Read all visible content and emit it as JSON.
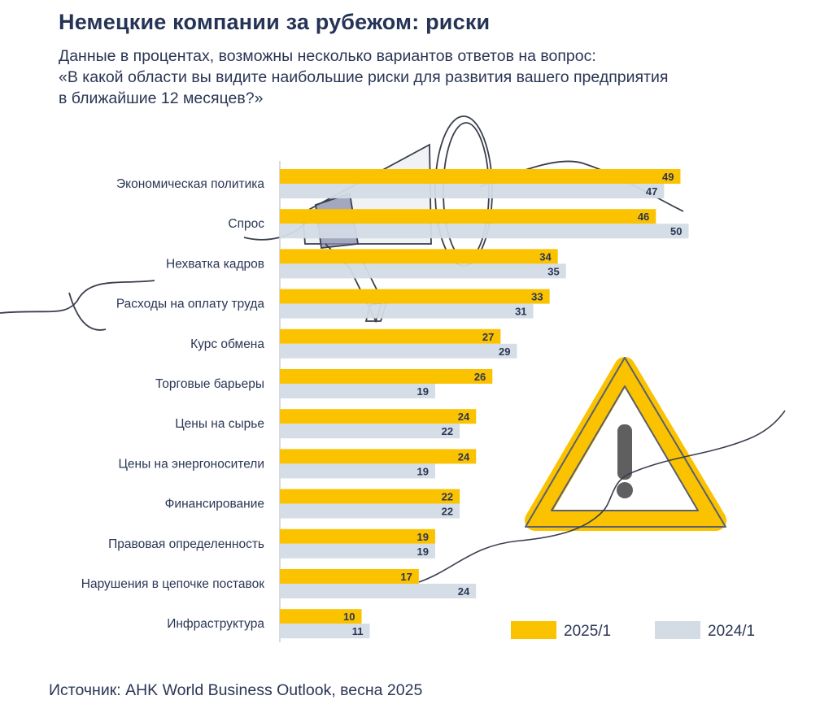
{
  "title": "Немецкие компании за рубежом: риски",
  "subtitle_lines": [
    "Данные в процентах, возможны несколько вариантов ответов на вопрос:",
    "«В какой области вы видите наибольшие риски для развития вашего предприятия",
    "в ближайшие 12 месяцев?»"
  ],
  "source": "Источник: AHK World Business Outlook, весна 2025",
  "colors": {
    "series_2025": "#fbc200",
    "series_2024": "#d3dbe5",
    "text": "#2a3654"
  },
  "chart_data": {
    "type": "bar",
    "orientation": "horizontal",
    "categories": [
      "Экономическая политика",
      "Спрос",
      "Нехватка кадров",
      "Расходы на оплату труда",
      "Курс обмена",
      "Торговые барьеры",
      "Цены на сырье",
      "Цены на энергоносители",
      "Финансирование",
      "Правовая определенность",
      "Нарушения в цепочке поставок",
      "Инфраструктура"
    ],
    "series": [
      {
        "name": "2025/1",
        "values": [
          49,
          46,
          34,
          33,
          27,
          26,
          24,
          24,
          22,
          19,
          17,
          10
        ]
      },
      {
        "name": "2024/1",
        "values": [
          47,
          50,
          35,
          31,
          29,
          19,
          22,
          19,
          22,
          19,
          24,
          11
        ]
      }
    ],
    "xlim": [
      0,
      50
    ],
    "legend": "bottom-right"
  }
}
